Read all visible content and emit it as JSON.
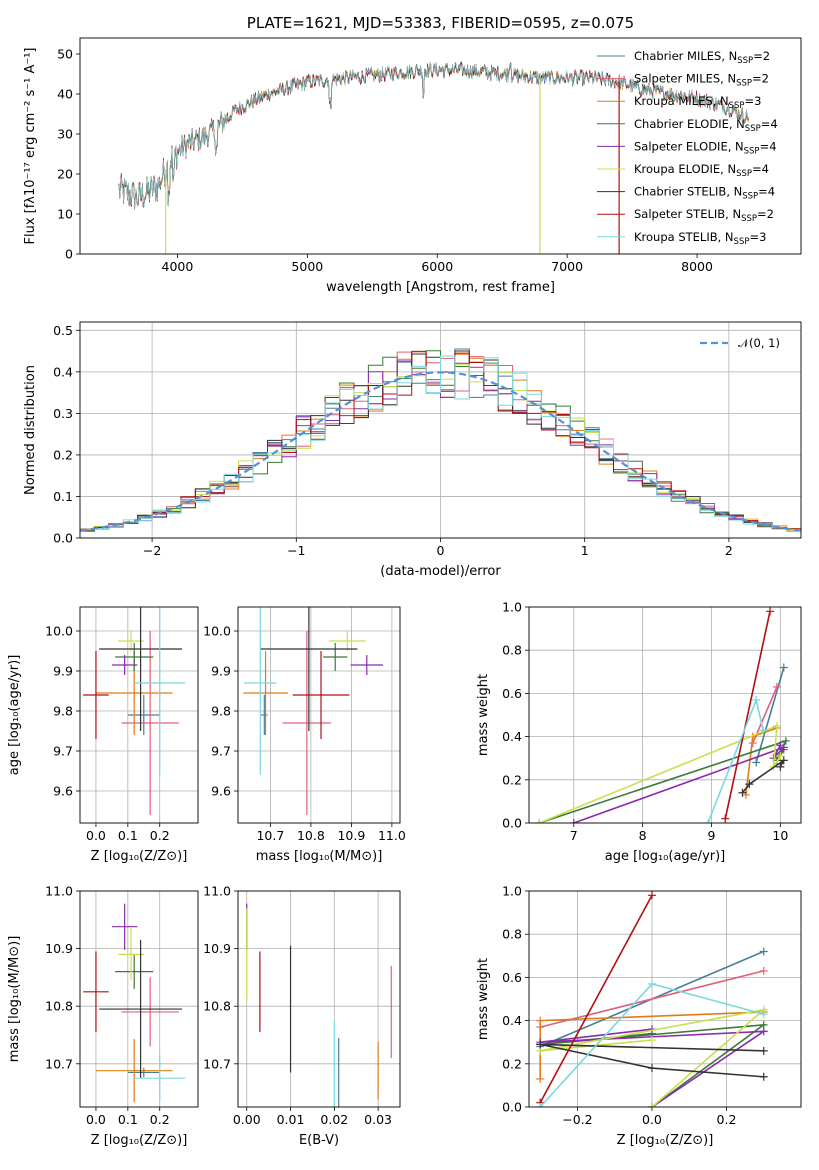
{
  "colors": {
    "Chabrier MILES": "#4a7d9a",
    "Salpeter MILES": "#e0607a",
    "Kroupa MILES": "#e07b1a",
    "Chabrier ELODIE": "#3a7a3a",
    "Salpeter ELODIE": "#8a2ab0",
    "Kroupa ELODIE": "#c8e04a",
    "Chabrier STELIB": "#333333",
    "Salpeter STELIB": "#b01010",
    "Kroupa STELIB": "#7ad8e0",
    "normal_fit": "#5590d8"
  },
  "chart_data": [
    {
      "id": "spectrum",
      "type": "line",
      "title": "PLATE=1621, MJD=53383, FIBERID=0595, z=0.075",
      "xlabel": "wavelength [Angstrom, rest frame]",
      "ylabel": "Flux [fλ10⁻¹⁷ erg cm⁻² s⁻¹ A⁻¹]",
      "xlim": [
        3250,
        8800
      ],
      "ylim": [
        0,
        54
      ],
      "xticks": [
        4000,
        5000,
        6000,
        7000,
        8000
      ],
      "yticks": [
        0,
        10,
        20,
        30,
        40,
        50
      ],
      "legend_position": "top-right",
      "legend": [
        {
          "label": "Chabrier MILES, N",
          "sub": "SSP",
          "suffix": "=2",
          "key": "Chabrier MILES"
        },
        {
          "label": "Salpeter MILES, N",
          "sub": "SSP",
          "suffix": "=2",
          "key": "Salpeter MILES"
        },
        {
          "label": "Kroupa MILES, N",
          "sub": "SSP",
          "suffix": "=3",
          "key": "Kroupa MILES"
        },
        {
          "label": "Chabrier ELODIE, N",
          "sub": "SSP",
          "suffix": "=4",
          "key": "Chabrier ELODIE"
        },
        {
          "label": "Salpeter ELODIE, N",
          "sub": "SSP",
          "suffix": "=4",
          "key": "Salpeter ELODIE"
        },
        {
          "label": "Kroupa ELODIE, N",
          "sub": "SSP",
          "suffix": "=4",
          "key": "Kroupa ELODIE"
        },
        {
          "label": "Chabrier STELIB, N",
          "sub": "SSP",
          "suffix": "=4",
          "key": "Chabrier STELIB"
        },
        {
          "label": "Salpeter STELIB, N",
          "sub": "SSP",
          "suffix": "=2",
          "key": "Salpeter STELIB"
        },
        {
          "label": "Kroupa STELIB, N",
          "sub": "SSP",
          "suffix": "=3",
          "key": "Kroupa STELIB"
        }
      ],
      "continuum": {
        "x": [
          3550,
          3700,
          3850,
          3950,
          4050,
          4250,
          4450,
          4700,
          5000,
          5300,
          5600,
          5900,
          6200,
          6500,
          6800,
          7000,
          7200,
          7400,
          7600,
          7800,
          8000,
          8200,
          8400
        ],
        "y": [
          16,
          14,
          17,
          24,
          27,
          30,
          36,
          40,
          43,
          44,
          45,
          46,
          46,
          45,
          44,
          44,
          44,
          43,
          41,
          40,
          39,
          37,
          34
        ]
      },
      "dips": [
        {
          "x": 3910,
          "model": "Kroupa ELODIE",
          "to": 0
        },
        {
          "x": 6790,
          "model": "Kroupa ELODIE",
          "to": 0
        },
        {
          "x": 7400,
          "model": "Salpeter STELIB",
          "to": 0
        }
      ]
    },
    {
      "id": "residual-histogram",
      "type": "histogram",
      "xlabel": "(data-model)/error",
      "ylabel": "Normed distribution",
      "xlim": [
        -2.5,
        2.5
      ],
      "ylim": [
        0,
        0.52
      ],
      "xticks": [
        -2,
        -1,
        0,
        1,
        2
      ],
      "yticks": [
        0.0,
        0.1,
        0.2,
        0.3,
        0.4,
        0.5
      ],
      "grid": true,
      "legend_position": "top-right",
      "fit_label": "𝒩(0, 1)",
      "bin_width": 0.1
    },
    {
      "id": "age-vs-Z",
      "type": "errorbar",
      "xlabel": "Z [log₁₀(Z/Z⊙)]",
      "ylabel": "age  [log₁₀(age/yr)]",
      "xlim": [
        -0.05,
        0.32
      ],
      "ylim": [
        9.52,
        10.06
      ],
      "xticks": [
        0.0,
        0.1,
        0.2
      ],
      "yticks": [
        9.6,
        9.7,
        9.8,
        9.9,
        10.0
      ]
    },
    {
      "id": "age-vs-mass",
      "type": "errorbar",
      "xlabel": "mass [log₁₀(M/M⊙)]",
      "xlim": [
        10.62,
        11.02
      ],
      "ylim": [
        9.52,
        10.06
      ],
      "xticks": [
        10.7,
        10.8,
        10.9,
        11.0
      ],
      "yticks": [
        9.6,
        9.7,
        9.8,
        9.9,
        10.0
      ]
    },
    {
      "id": "weight-vs-age",
      "type": "line",
      "xlabel": "age  [log₁₀(age/yr)]",
      "ylabel": "mass weight",
      "xlim": [
        6.35,
        10.3
      ],
      "ylim": [
        0,
        1.0
      ],
      "xticks": [
        7,
        8,
        9,
        10
      ],
      "yticks": [
        0.0,
        0.2,
        0.4,
        0.6,
        0.8,
        1.0
      ]
    },
    {
      "id": "mass-vs-Z",
      "type": "errorbar",
      "xlabel": "Z [log₁₀(Z/Z⊙)]",
      "ylabel": "mass [log₁₀(M/M⊙)]",
      "xlim": [
        -0.05,
        0.32
      ],
      "ylim": [
        10.625,
        11.0
      ],
      "xticks": [
        0.0,
        0.1,
        0.2
      ],
      "yticks": [
        10.7,
        10.8,
        10.9,
        11.0
      ]
    },
    {
      "id": "mass-vs-ebv",
      "type": "errorbar",
      "xlabel": "E(B-V)",
      "xlim": [
        -0.002,
        0.035
      ],
      "ylim": [
        10.625,
        11.0
      ],
      "xticks": [
        0.0,
        0.01,
        0.02,
        0.03
      ],
      "yticks": [
        10.7,
        10.8,
        10.9,
        11.0
      ]
    },
    {
      "id": "weight-vs-Z",
      "type": "line",
      "xlabel": "Z [log₁₀(Z/Z⊙)]",
      "ylabel": "mass weight",
      "xlim": [
        -0.33,
        0.4
      ],
      "ylim": [
        0,
        1.0
      ],
      "xticks": [
        -0.2,
        0.0,
        0.2
      ],
      "yticks": [
        0.0,
        0.2,
        0.4,
        0.6,
        0.8,
        1.0
      ]
    }
  ],
  "models": {
    "Chabrier MILES": {
      "Z": 0.15,
      "Zerr": 0.05,
      "age": 9.79,
      "ageErr": 0.05,
      "mass": 10.685,
      "massErr": 0.008,
      "ebv": 0.021,
      "ebvErr": 0.06,
      "ssp": [
        {
          "age": 9.65,
          "Z": -0.3,
          "w": 0.28
        },
        {
          "age": 10.05,
          "Z": 0.3,
          "w": 0.72
        }
      ]
    },
    "Salpeter MILES": {
      "Z": 0.17,
      "Zerr": 0.09,
      "age": 9.77,
      "ageErr": 0.23,
      "mass": 10.79,
      "massErr": 0.06,
      "ebv": 0.033,
      "ebvErr": 0.08,
      "ssp": [
        {
          "age": 9.6,
          "Z": -0.3,
          "w": 0.37
        },
        {
          "age": 9.95,
          "Z": 0.3,
          "w": 0.63
        }
      ]
    },
    "Kroupa MILES": {
      "Z": 0.12,
      "Zerr": 0.12,
      "age": 9.845,
      "ageErr": 0.105,
      "mass": 10.688,
      "massErr": 0.055,
      "ebv": 0.03,
      "ebvErr": 0.05,
      "ssp": [
        {
          "age": 9.5,
          "Z": -0.3,
          "w": 0.13
        },
        {
          "age": 9.6,
          "Z": -0.3,
          "w": 0.4
        },
        {
          "age": 9.95,
          "Z": 0.3,
          "w": 0.44
        }
      ]
    },
    "Chabrier ELODIE": {
      "Z": 0.12,
      "Zerr": 0.06,
      "age": 9.935,
      "ageErr": 0.035,
      "mass": 10.86,
      "massErr": 0.03,
      "ebv": 0.0,
      "ebvErr": 0.0,
      "ssp": [
        {
          "age": 6.5,
          "Z": 0.0,
          "w": 0.0
        },
        {
          "age": 10.08,
          "Z": 0.3,
          "w": 0.38
        },
        {
          "age": 9.95,
          "Z": -0.3,
          "w": 0.29
        },
        {
          "age": 10.05,
          "Z": 0.0,
          "w": 0.34
        }
      ]
    },
    "Salpeter ELODIE": {
      "Z": 0.09,
      "Zerr": 0.04,
      "age": 9.915,
      "ageErr": 0.025,
      "mass": 10.938,
      "massErr": 0.04,
      "ebv": 0.0,
      "ebvErr": 0.04,
      "ssp": [
        {
          "age": 7.0,
          "Z": 0.0,
          "w": 0.0
        },
        {
          "age": 10.05,
          "Z": 0.3,
          "w": 0.35
        },
        {
          "age": 9.9,
          "Z": -0.3,
          "w": 0.3
        },
        {
          "age": 10.0,
          "Z": 0.0,
          "w": 0.36
        }
      ]
    },
    "Kroupa ELODIE": {
      "Z": 0.11,
      "Zerr": 0.04,
      "age": 9.975,
      "ageErr": 0.025,
      "mass": 10.89,
      "massErr": 0.045,
      "ebv": 0.0,
      "ebvErr": 0.08,
      "ssp": [
        {
          "age": 6.5,
          "Z": 0.0,
          "w": 0.0
        },
        {
          "age": 9.95,
          "Z": 0.3,
          "w": 0.45
        },
        {
          "age": 9.9,
          "Z": -0.3,
          "w": 0.26
        },
        {
          "age": 10.0,
          "Z": 0.0,
          "w": 0.31
        }
      ]
    },
    "Chabrier STELIB": {
      "Z": 0.14,
      "Zerr": 0.13,
      "age": 9.955,
      "ageErr": 0.205,
      "mass": 10.795,
      "massErr": 0.12,
      "ebv": 0.01,
      "ebvErr": 0.11,
      "ssp": [
        {
          "age": 9.45,
          "Z": 0.3,
          "w": 0.14
        },
        {
          "age": 9.55,
          "Z": 0.0,
          "w": 0.18
        },
        {
          "age": 10.05,
          "Z": -0.3,
          "w": 0.29
        },
        {
          "age": 10.0,
          "Z": 0.3,
          "w": 0.26
        }
      ]
    },
    "Salpeter STELIB": {
      "Z": 0.0,
      "Zerr": 0.04,
      "age": 9.84,
      "ageErr": 0.11,
      "mass": 10.825,
      "massErr": 0.07,
      "ebv": 0.003,
      "ebvErr": 0.07,
      "ssp": [
        {
          "age": 9.2,
          "Z": -0.3,
          "w": 0.02
        },
        {
          "age": 9.85,
          "Z": 0.0,
          "w": 0.98
        }
      ]
    },
    "Kroupa STELIB": {
      "Z": 0.2,
      "Zerr": 0.08,
      "age": 9.87,
      "ageErr": 0.23,
      "mass": 10.675,
      "massErr": 0.04,
      "ebv": 0.02,
      "ebvErr": 0.1,
      "ssp": [
        {
          "age": 8.95,
          "Z": -0.3,
          "w": 0.0
        },
        {
          "age": 9.65,
          "Z": 0.0,
          "w": 0.57
        },
        {
          "age": 9.75,
          "Z": 0.3,
          "w": 0.43
        }
      ]
    }
  }
}
